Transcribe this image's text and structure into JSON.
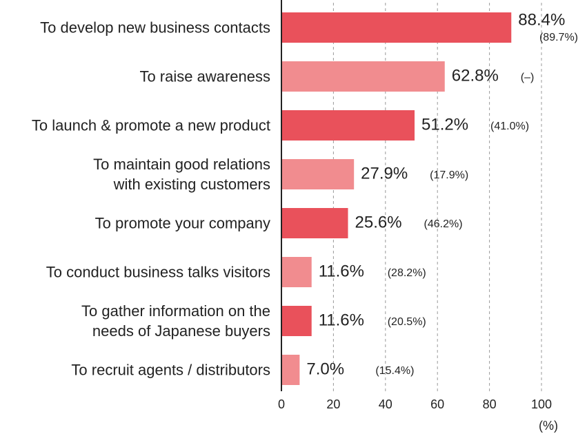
{
  "chart_data": {
    "type": "bar",
    "orientation": "horizontal",
    "categories": [
      "To develop new business contacts",
      "To raise awareness",
      "To launch & promote a new product",
      "To maintain good relations\nwith existing customers",
      "To promote your company",
      "To conduct business talks visitors",
      "To gather information on the\nneeds of Japanese buyers",
      "To recruit agents / distributors"
    ],
    "values": [
      88.4,
      62.8,
      51.2,
      27.9,
      25.6,
      11.6,
      11.6,
      7.0
    ],
    "value_labels": [
      "88.4%",
      "62.8%",
      "51.2%",
      "27.9%",
      "25.6%",
      "11.6%",
      "11.6%",
      "7.0%"
    ],
    "previous_values": [
      89.7,
      null,
      41.0,
      17.9,
      46.2,
      28.2,
      20.5,
      15.4
    ],
    "previous_labels": [
      "(89.7%)",
      "(–)",
      "(41.0%)",
      "(17.9%)",
      "(46.2%)",
      "(28.2%)",
      "(20.5%)",
      "(15.4%)"
    ],
    "colors": [
      "#e9515b",
      "#f18c8f",
      "#e9515b",
      "#f18c8f",
      "#e9515b",
      "#f18c8f",
      "#e9515b",
      "#f18c8f"
    ],
    "xlim": [
      0,
      100
    ],
    "xticks": [
      0,
      20,
      40,
      60,
      80,
      100
    ],
    "xlabel": "(%)",
    "grid": true
  }
}
